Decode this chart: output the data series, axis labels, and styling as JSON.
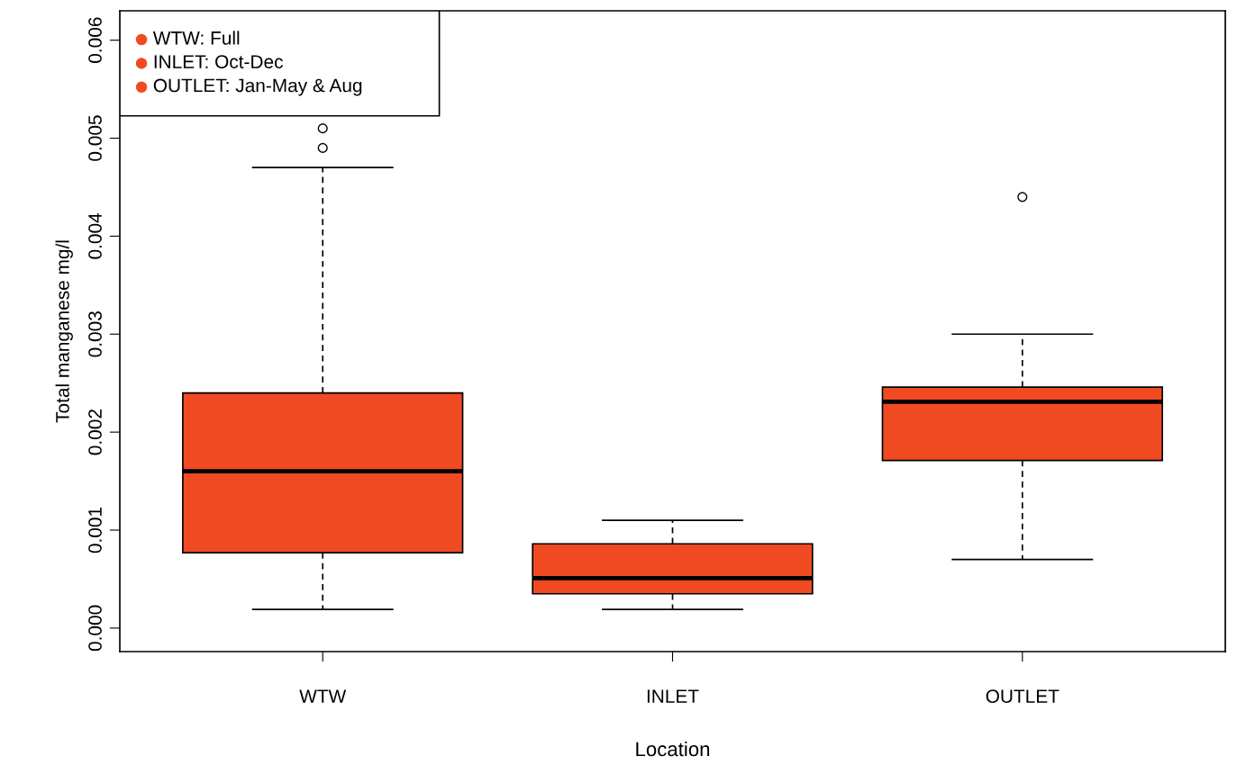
{
  "chart_data": {
    "type": "box",
    "xlabel": "Location",
    "ylabel": "Total manganese mg/l",
    "categories": [
      "WTW",
      "INLET",
      "OUTLET"
    ],
    "series": [
      {
        "color": "#f04a23",
        "boxes": [
          {
            "low": 0.00019,
            "q1": 0.00077,
            "median": 0.0016,
            "q3": 0.0024,
            "high": 0.0047,
            "outliers": [
              0.0049,
              0.0051
            ]
          },
          {
            "low": 0.00019,
            "q1": 0.00035,
            "median": 0.00051,
            "q3": 0.00086,
            "high": 0.0011
          },
          {
            "low": 0.0007,
            "q1": 0.00171,
            "median": 0.00231,
            "q3": 0.00246,
            "high": 0.003,
            "outliers": [
              0.0044
            ]
          }
        ]
      }
    ],
    "annotations": [
      "WTW: Full",
      "INLET: Oct-Dec",
      "OUTLET: Jan-May & Aug"
    ],
    "ylim": [
      -0.00024,
      0.0063
    ],
    "yticks": [
      {
        "value": 0,
        "label": "0.000"
      },
      0.001,
      0.002,
      0.003,
      0.004,
      0.005,
      0.006
    ],
    "grid": false
  }
}
